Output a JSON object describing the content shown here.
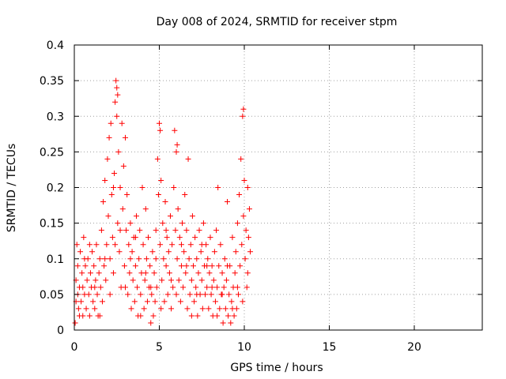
{
  "chart_data": {
    "type": "scatter",
    "title": "Day 008 of 2024, SRMTID for receiver stpm",
    "xlabel": "GPS time / hours",
    "ylabel": "SRMTID / TECUs",
    "xlim": [
      0,
      24
    ],
    "ylim": [
      0,
      0.4
    ],
    "xticks": [
      0,
      5,
      10,
      15,
      20
    ],
    "xtick_labels": [
      "0",
      "5",
      "10",
      "15",
      "20"
    ],
    "yticks": [
      0,
      0.05,
      0.1,
      0.15,
      0.2,
      0.25,
      0.3,
      0.35,
      0.4
    ],
    "ytick_labels": [
      "0",
      "0.05",
      "0.1",
      "0.15",
      "0.2",
      "0.25",
      "0.3",
      "0.35",
      "0.4"
    ],
    "grid": true,
    "marker": "plus",
    "color": "#ff0000",
    "series": [
      {
        "name": "SRMTID",
        "points": [
          [
            0.05,
            0.01
          ],
          [
            0.1,
            0.04
          ],
          [
            0.1,
            0.07
          ],
          [
            0.15,
            0.12
          ],
          [
            0.2,
            0.05
          ],
          [
            0.2,
            0.09
          ],
          [
            0.25,
            0.03
          ],
          [
            0.3,
            0.06
          ],
          [
            0.35,
            0.11
          ],
          [
            0.4,
            0.04
          ],
          [
            0.45,
            0.08
          ],
          [
            0.5,
            0.02
          ],
          [
            0.5,
            0.06
          ],
          [
            0.55,
            0.13
          ],
          [
            0.6,
            0.05
          ],
          [
            0.65,
            0.09
          ],
          [
            0.7,
            0.03
          ],
          [
            0.75,
            0.07
          ],
          [
            0.8,
            0.1
          ],
          [
            0.85,
            0.05
          ],
          [
            0.9,
            0.02
          ],
          [
            0.95,
            0.08
          ],
          [
            1.0,
            0.06
          ],
          [
            1.05,
            0.11
          ],
          [
            1.1,
            0.04
          ],
          [
            1.15,
            0.09
          ],
          [
            1.2,
            0.03
          ],
          [
            1.25,
            0.07
          ],
          [
            1.3,
            0.12
          ],
          [
            1.35,
            0.05
          ],
          [
            1.4,
            0.02
          ],
          [
            1.45,
            0.08
          ],
          [
            1.5,
            0.1
          ],
          [
            1.55,
            0.06
          ],
          [
            1.6,
            0.14
          ],
          [
            1.65,
            0.04
          ],
          [
            1.7,
            0.18
          ],
          [
            1.75,
            0.09
          ],
          [
            1.8,
            0.21
          ],
          [
            1.85,
            0.07
          ],
          [
            1.9,
            0.12
          ],
          [
            1.95,
            0.24
          ],
          [
            2.0,
            0.16
          ],
          [
            2.05,
            0.27
          ],
          [
            2.1,
            0.1
          ],
          [
            2.15,
            0.29
          ],
          [
            2.2,
            0.19
          ],
          [
            2.25,
            0.13
          ],
          [
            2.3,
            0.08
          ],
          [
            2.35,
            0.22
          ],
          [
            2.4,
            0.32
          ],
          [
            2.45,
            0.35
          ],
          [
            2.5,
            0.3
          ],
          [
            2.55,
            0.15
          ],
          [
            2.6,
            0.25
          ],
          [
            2.65,
            0.11
          ],
          [
            2.7,
            0.2
          ],
          [
            2.75,
            0.06
          ],
          [
            2.8,
            0.29
          ],
          [
            2.85,
            0.17
          ],
          [
            2.9,
            0.23
          ],
          [
            2.95,
            0.09
          ],
          [
            3.0,
            0.27
          ],
          [
            3.05,
            0.14
          ],
          [
            3.1,
            0.19
          ],
          [
            3.15,
            0.05
          ],
          [
            3.2,
            0.12
          ],
          [
            3.25,
            0.08
          ],
          [
            3.3,
            0.15
          ],
          [
            3.35,
            0.03
          ],
          [
            3.4,
            0.11
          ],
          [
            3.45,
            0.07
          ],
          [
            3.5,
            0.13
          ],
          [
            3.55,
            0.04
          ],
          [
            3.6,
            0.09
          ],
          [
            3.65,
            0.16
          ],
          [
            3.7,
            0.06
          ],
          [
            3.75,
            0.02
          ],
          [
            3.8,
            0.1
          ],
          [
            3.85,
            0.14
          ],
          [
            3.9,
            0.05
          ],
          [
            3.95,
            0.08
          ],
          [
            4.0,
            0.2
          ],
          [
            4.05,
            0.12
          ],
          [
            4.1,
            0.03
          ],
          [
            4.15,
            0.07
          ],
          [
            4.2,
            0.17
          ],
          [
            4.25,
            0.1
          ],
          [
            4.3,
            0.04
          ],
          [
            4.35,
            0.13
          ],
          [
            4.4,
            0.06
          ],
          [
            4.45,
            0.09
          ],
          [
            4.5,
            0.01
          ],
          [
            4.55,
            0.05
          ],
          [
            4.6,
            0.11
          ],
          [
            4.65,
            0.02
          ],
          [
            4.7,
            0.08
          ],
          [
            4.75,
            0.04
          ],
          [
            4.8,
            0.14
          ],
          [
            4.85,
            0.06
          ],
          [
            4.9,
            0.24
          ],
          [
            4.95,
            0.19
          ],
          [
            5.0,
            0.29
          ],
          [
            5.05,
            0.12
          ],
          [
            5.1,
            0.21
          ],
          [
            5.15,
            0.07
          ],
          [
            5.2,
            0.15
          ],
          [
            5.25,
            0.1
          ],
          [
            5.3,
            0.04
          ],
          [
            5.35,
            0.18
          ],
          [
            5.4,
            0.09
          ],
          [
            5.45,
            0.13
          ],
          [
            5.5,
            0.05
          ],
          [
            5.55,
            0.11
          ],
          [
            5.6,
            0.08
          ],
          [
            5.65,
            0.16
          ],
          [
            5.7,
            0.03
          ],
          [
            5.75,
            0.12
          ],
          [
            5.8,
            0.06
          ],
          [
            5.85,
            0.2
          ],
          [
            5.9,
            0.28
          ],
          [
            5.95,
            0.14
          ],
          [
            6.0,
            0.25
          ],
          [
            6.05,
            0.1
          ],
          [
            6.1,
            0.17
          ],
          [
            6.15,
            0.07
          ],
          [
            6.2,
            0.13
          ],
          [
            6.25,
            0.04
          ],
          [
            6.3,
            0.09
          ],
          [
            6.35,
            0.15
          ],
          [
            6.4,
            0.06
          ],
          [
            6.45,
            0.11
          ],
          [
            6.5,
            0.19
          ],
          [
            6.55,
            0.08
          ],
          [
            6.6,
            0.14
          ],
          [
            6.65,
            0.03
          ],
          [
            6.7,
            0.24
          ],
          [
            6.75,
            0.1
          ],
          [
            6.8,
            0.05
          ],
          [
            6.85,
            0.12
          ],
          [
            6.9,
            0.07
          ],
          [
            6.95,
            0.16
          ],
          [
            7.0,
            0.09
          ],
          [
            7.05,
            0.04
          ],
          [
            7.1,
            0.13
          ],
          [
            7.15,
            0.06
          ],
          [
            7.2,
            0.1
          ],
          [
            7.25,
            0.02
          ],
          [
            7.3,
            0.08
          ],
          [
            7.35,
            0.14
          ],
          [
            7.4,
            0.05
          ],
          [
            7.45,
            0.11
          ],
          [
            7.5,
            0.07
          ],
          [
            7.55,
            0.03
          ],
          [
            7.6,
            0.15
          ],
          [
            7.65,
            0.09
          ],
          [
            7.7,
            0.05
          ],
          [
            7.75,
            0.12
          ],
          [
            7.8,
            0.06
          ],
          [
            7.85,
            0.1
          ],
          [
            7.9,
            0.03
          ],
          [
            7.95,
            0.08
          ],
          [
            8.0,
            0.13
          ],
          [
            8.05,
            0.05
          ],
          [
            8.1,
            0.09
          ],
          [
            8.15,
            0.02
          ],
          [
            8.2,
            0.07
          ],
          [
            8.25,
            0.11
          ],
          [
            8.3,
            0.04
          ],
          [
            8.35,
            0.14
          ],
          [
            8.4,
            0.06
          ],
          [
            8.45,
            0.2
          ],
          [
            8.5,
            0.09
          ],
          [
            8.55,
            0.03
          ],
          [
            8.6,
            0.12
          ],
          [
            8.65,
            0.05
          ],
          [
            8.7,
            0.08
          ],
          [
            8.75,
            0.01
          ],
          [
            8.8,
            0.06
          ],
          [
            8.85,
            0.1
          ],
          [
            8.9,
            0.03
          ],
          [
            8.95,
            0.07
          ],
          [
            9.0,
            0.18
          ],
          [
            9.05,
            0.02
          ],
          [
            9.1,
            0.05
          ],
          [
            9.15,
            0.09
          ],
          [
            9.2,
            0.01
          ],
          [
            9.25,
            0.04
          ],
          [
            9.3,
            0.13
          ],
          [
            9.35,
            0.06
          ],
          [
            9.4,
            0.02
          ],
          [
            9.45,
            0.08
          ],
          [
            9.5,
            0.11
          ],
          [
            9.55,
            0.03
          ],
          [
            9.6,
            0.15
          ],
          [
            9.65,
            0.05
          ],
          [
            9.7,
            0.19
          ],
          [
            9.75,
            0.09
          ],
          [
            9.8,
            0.24
          ],
          [
            9.85,
            0.12
          ],
          [
            9.9,
            0.3
          ],
          [
            9.95,
            0.16
          ],
          [
            10.0,
            0.21
          ],
          [
            10.05,
            0.1
          ],
          [
            10.1,
            0.14
          ],
          [
            10.15,
            0.06
          ],
          [
            10.2,
            0.2
          ],
          [
            10.25,
            0.13
          ],
          [
            10.3,
            0.17
          ],
          [
            10.35,
            0.11
          ],
          [
            0.3,
            0.02
          ],
          [
            0.6,
            0.1
          ],
          [
            0.9,
            0.12
          ],
          [
            1.2,
            0.06
          ],
          [
            1.5,
            0.02
          ],
          [
            1.8,
            0.1
          ],
          [
            2.1,
            0.05
          ],
          [
            2.4,
            0.12
          ],
          [
            2.7,
            0.14
          ],
          [
            3.0,
            0.06
          ],
          [
            3.3,
            0.1
          ],
          [
            3.6,
            0.13
          ],
          [
            3.9,
            0.02
          ],
          [
            4.2,
            0.08
          ],
          [
            4.5,
            0.06
          ],
          [
            4.8,
            0.1
          ],
          [
            5.1,
            0.03
          ],
          [
            5.4,
            0.14
          ],
          [
            5.7,
            0.07
          ],
          [
            6.0,
            0.05
          ],
          [
            6.3,
            0.12
          ],
          [
            6.6,
            0.09
          ],
          [
            6.9,
            0.02
          ],
          [
            7.2,
            0.05
          ],
          [
            7.5,
            0.12
          ],
          [
            7.8,
            0.09
          ],
          [
            8.1,
            0.06
          ],
          [
            8.4,
            0.02
          ],
          [
            8.7,
            0.05
          ],
          [
            9.0,
            0.09
          ],
          [
            9.3,
            0.03
          ],
          [
            9.6,
            0.06
          ],
          [
            9.9,
            0.04
          ],
          [
            10.2,
            0.08
          ],
          [
            2.5,
            0.34
          ],
          [
            2.55,
            0.33
          ],
          [
            5.05,
            0.28
          ],
          [
            6.05,
            0.26
          ],
          [
            9.95,
            0.31
          ],
          [
            2.3,
            0.2
          ]
        ]
      }
    ]
  }
}
